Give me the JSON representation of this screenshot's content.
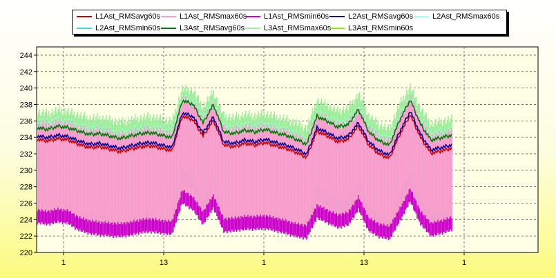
{
  "chart_data": {
    "type": "line",
    "title": "",
    "xlabel": "",
    "ylabel": "",
    "ylim": [
      220,
      245
    ],
    "yticks": [
      220,
      222,
      224,
      226,
      228,
      230,
      232,
      234,
      236,
      238,
      240,
      242,
      244
    ],
    "xticks": [
      "1",
      "13",
      "1",
      "13",
      "1"
    ],
    "grid": true,
    "legend_position": "top",
    "x_note": "time axis, daily ticks",
    "series": [
      {
        "name": "L1Ast_RMSavg60s",
        "color": "#cc0000",
        "values": [
          233.8,
          233.6,
          233.9,
          233.7,
          233.2,
          232.8,
          232.9,
          232.6,
          232.3,
          232.6,
          232.9,
          233.0,
          232.7,
          232.4,
          236.6,
          236.2,
          234.2,
          236.1,
          233.1,
          232.9,
          233.3,
          233.1,
          233.4,
          233.0,
          232.7,
          232.2,
          231.6,
          234.8,
          234.2,
          233.5,
          233.8,
          235.4,
          233.1,
          232.0,
          231.5,
          234.4,
          236.8,
          234.0,
          232.1,
          232.4,
          232.7
        ]
      },
      {
        "name": "L1Ast_RMSmax60s",
        "color": "#ff99cc",
        "values": [
          235.8,
          235.6,
          235.9,
          235.7,
          235.2,
          234.8,
          234.9,
          234.6,
          234.3,
          234.6,
          234.9,
          235.0,
          234.7,
          234.4,
          238.6,
          238.2,
          236.2,
          238.1,
          235.1,
          234.9,
          235.3,
          235.1,
          235.4,
          235.0,
          234.7,
          234.2,
          233.6,
          236.8,
          236.2,
          235.5,
          235.8,
          237.4,
          235.1,
          234.0,
          233.5,
          236.4,
          238.8,
          236.0,
          234.1,
          234.4,
          234.7
        ]
      },
      {
        "name": "L1Ast_RMSmin60s",
        "color": "#cc00cc",
        "values": [
          223.8,
          223.6,
          223.9,
          223.7,
          222.9,
          222.5,
          222.3,
          222.2,
          222.1,
          222.3,
          222.6,
          222.7,
          222.5,
          222.4,
          226.2,
          225.4,
          223.6,
          225.6,
          222.7,
          222.8,
          223.0,
          223.0,
          223.1,
          222.8,
          222.5,
          222.1,
          221.9,
          224.4,
          223.8,
          223.2,
          223.5,
          225.4,
          222.8,
          222.1,
          221.8,
          224.0,
          226.4,
          223.6,
          222.2,
          222.5,
          222.9
        ]
      },
      {
        "name": "L2Ast_RMSavg60s",
        "color": "#000099",
        "values": [
          234.2,
          234.0,
          234.3,
          234.1,
          233.6,
          233.2,
          233.3,
          233.0,
          232.7,
          233.0,
          233.3,
          233.4,
          233.1,
          232.8,
          237.0,
          236.6,
          234.6,
          236.5,
          233.5,
          233.3,
          233.7,
          233.5,
          233.8,
          233.4,
          233.1,
          232.6,
          232.0,
          235.2,
          234.6,
          233.9,
          234.2,
          235.8,
          233.5,
          232.4,
          231.9,
          234.8,
          237.2,
          234.4,
          232.5,
          232.8,
          233.1
        ]
      },
      {
        "name": "L2Ast_RMSmax60s",
        "color": "#99ffff",
        "values": [
          236.0,
          235.8,
          236.1,
          235.9,
          235.4,
          235.0,
          235.1,
          234.8,
          234.5,
          234.8,
          235.1,
          235.2,
          234.9,
          234.6,
          238.8,
          238.4,
          236.4,
          238.3,
          235.3,
          235.1,
          235.5,
          235.3,
          235.6,
          235.2,
          234.9,
          234.4,
          233.8,
          237.0,
          236.4,
          235.7,
          236.0,
          237.6,
          235.3,
          234.2,
          233.7,
          236.6,
          239.0,
          236.2,
          234.3,
          234.6,
          234.9
        ]
      },
      {
        "name": "L2Ast_RMSmin60s",
        "color": "#33dddd",
        "values": [
          224.0,
          223.8,
          224.1,
          223.9,
          223.4,
          223.0,
          223.1,
          222.8,
          222.5,
          222.8,
          223.1,
          223.2,
          222.9,
          222.6,
          228.6,
          228.0,
          224.6,
          228.1,
          223.3,
          223.1,
          223.5,
          223.3,
          223.6,
          223.2,
          222.9,
          222.4,
          222.2,
          226.6,
          225.8,
          224.9,
          225.2,
          227.4,
          224.3,
          223.0,
          222.6,
          225.6,
          228.4,
          225.0,
          223.3,
          223.6,
          223.9
        ]
      },
      {
        "name": "L3Ast_RMSavg60s",
        "color": "#007700",
        "values": [
          235.2,
          235.0,
          235.4,
          235.2,
          234.8,
          234.4,
          234.5,
          234.2,
          233.9,
          234.2,
          234.5,
          234.6,
          234.3,
          234.0,
          238.5,
          238.1,
          235.8,
          238.0,
          234.7,
          234.5,
          234.9,
          234.7,
          235.0,
          234.6,
          234.3,
          233.8,
          233.2,
          236.6,
          236.0,
          235.3,
          235.6,
          237.4,
          234.7,
          233.6,
          233.1,
          236.2,
          238.6,
          235.6,
          233.7,
          234.0,
          234.3
        ]
      },
      {
        "name": "L3Ast_RMSmax60s",
        "color": "#99ee99",
        "values": [
          237.2,
          237.0,
          237.4,
          237.2,
          236.8,
          236.4,
          236.5,
          236.2,
          235.9,
          236.2,
          236.5,
          236.6,
          236.3,
          236.0,
          240.0,
          239.8,
          237.8,
          239.6,
          236.7,
          236.5,
          236.9,
          236.7,
          237.0,
          236.6,
          236.3,
          235.8,
          235.2,
          238.6,
          238.0,
          237.3,
          237.6,
          239.4,
          236.7,
          235.6,
          235.1,
          238.2,
          240.2,
          237.6,
          235.7,
          236.0,
          236.3
        ]
      },
      {
        "name": "L3Ast_RMSmin60s",
        "color": "#88ee00",
        "values": [
          225.0,
          224.8,
          225.2,
          225.0,
          224.6,
          224.2,
          224.3,
          224.0,
          223.7,
          224.0,
          224.3,
          224.4,
          224.1,
          223.8,
          229.5,
          229.0,
          225.6,
          229.0,
          224.5,
          224.3,
          224.7,
          224.5,
          224.8,
          224.4,
          224.1,
          223.6,
          223.0,
          227.6,
          226.8,
          225.9,
          226.2,
          228.4,
          225.3,
          224.0,
          223.6,
          226.8,
          229.4,
          226.0,
          224.3,
          224.6,
          224.9
        ]
      }
    ]
  }
}
